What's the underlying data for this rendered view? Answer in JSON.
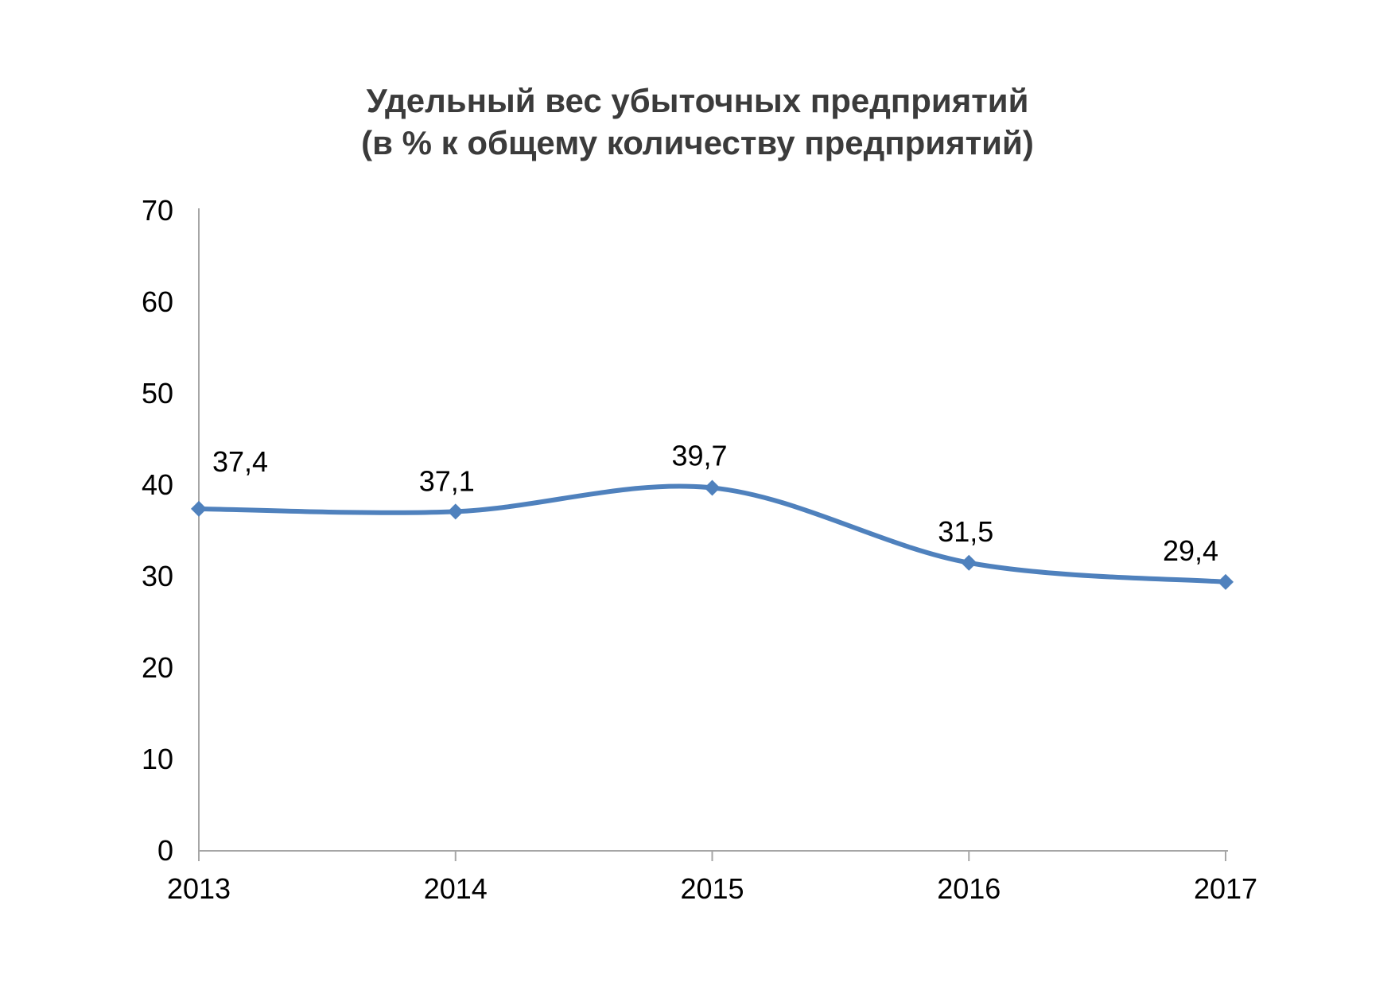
{
  "chart_data": {
    "type": "line",
    "title": "Удельный вес убыточных предприятий",
    "subtitle": "(в % к общему количеству предприятий)",
    "categories": [
      "2013",
      "2014",
      "2015",
      "2016",
      "2017"
    ],
    "series": [
      {
        "name": "",
        "values": [
          37.4,
          37.1,
          39.7,
          31.5,
          29.4
        ],
        "data_labels": [
          "37,4",
          "37,1",
          "39,7",
          "31,5",
          "29,4"
        ]
      }
    ],
    "xlabel": "",
    "ylabel": "",
    "ylim": [
      0,
      70
    ],
    "ytick_step": 10,
    "yticks": [
      0,
      10,
      20,
      30,
      40,
      50,
      60,
      70
    ],
    "grid": false,
    "legend": "none",
    "line_smooth": true,
    "marker": "diamond",
    "colors": {
      "line": "#4F81BD",
      "marker": "#4F81BD",
      "axis": "#A6A6A6",
      "tick_text": "#000000",
      "label_text": "#000000",
      "title_text": "#3B3B3B",
      "background": "#FFFFFF"
    }
  }
}
